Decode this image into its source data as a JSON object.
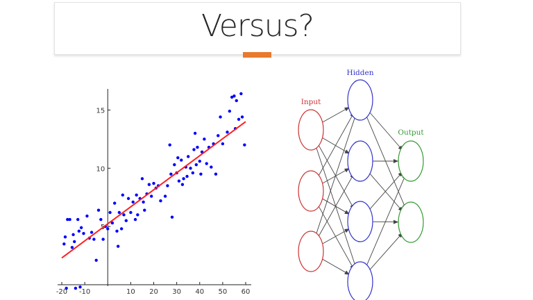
{
  "slide": {
    "title": "Versus?",
    "accent_color": "#e8792d"
  },
  "chart_data": {
    "type": "scatter",
    "title": "",
    "xlabel": "",
    "ylabel": "",
    "xlim": [
      -21,
      62
    ],
    "ylim": [
      -0.5,
      17
    ],
    "x_ticks": [
      -20,
      -10,
      10,
      20,
      30,
      40,
      50,
      60
    ],
    "y_ticks": [
      5,
      10,
      15
    ],
    "grid": false,
    "point_color": "#0000ff",
    "line_color": "#ff2020",
    "fit_line": {
      "x": [
        -20,
        60
      ],
      "y": [
        2.3,
        14
      ]
    },
    "points": [
      [
        -19,
        3.5
      ],
      [
        -18.5,
        4.1
      ],
      [
        -17.5,
        5.6
      ],
      [
        -16.5,
        5.6
      ],
      [
        -15.5,
        3.2
      ],
      [
        -15,
        4.3
      ],
      [
        -14.5,
        3.7
      ],
      [
        -13,
        5.6
      ],
      [
        -12.5,
        4.6
      ],
      [
        -11.5,
        4.9
      ],
      [
        -10.5,
        4.4
      ],
      [
        -9,
        5.9
      ],
      [
        -8,
        4.0
      ],
      [
        -7,
        4.5
      ],
      [
        -6,
        3.9
      ],
      [
        -5,
        2.1
      ],
      [
        -4,
        6.4
      ],
      [
        -3,
        5.6
      ],
      [
        -2,
        3.9
      ],
      [
        -1,
        5.0
      ],
      [
        0,
        4.8
      ],
      [
        1,
        6.2
      ],
      [
        2,
        5.3
      ],
      [
        3,
        7.0
      ],
      [
        4,
        4.6
      ],
      [
        4.5,
        3.3
      ],
      [
        5,
        6.2
      ],
      [
        6,
        4.8
      ],
      [
        6.5,
        7.7
      ],
      [
        7,
        6.0
      ],
      [
        8,
        5.5
      ],
      [
        9,
        7.4
      ],
      [
        10,
        6.2
      ],
      [
        11,
        7.1
      ],
      [
        12,
        5.6
      ],
      [
        12.5,
        7.7
      ],
      [
        13,
        6.0
      ],
      [
        14,
        7.4
      ],
      [
        15,
        9.1
      ],
      [
        15.5,
        7.1
      ],
      [
        16,
        6.4
      ],
      [
        17,
        7.8
      ],
      [
        18,
        8.6
      ],
      [
        19,
        7.6
      ],
      [
        20,
        8.7
      ],
      [
        21,
        8.3
      ],
      [
        22,
        8.5
      ],
      [
        23,
        7.2
      ],
      [
        25,
        7.6
      ],
      [
        26,
        8.5
      ],
      [
        27,
        12.0
      ],
      [
        27.5,
        9.5
      ],
      [
        28,
        5.8
      ],
      [
        29,
        10.3
      ],
      [
        30,
        9.6
      ],
      [
        30.5,
        10.9
      ],
      [
        31,
        8.9
      ],
      [
        32,
        10.7
      ],
      [
        32.5,
        8.6
      ],
      [
        33,
        9.1
      ],
      [
        34,
        10.1
      ],
      [
        34.5,
        9.3
      ],
      [
        35,
        11.0
      ],
      [
        36,
        10.0
      ],
      [
        37,
        9.6
      ],
      [
        37.5,
        11.6
      ],
      [
        38,
        13.0
      ],
      [
        38.5,
        10.3
      ],
      [
        39,
        11.8
      ],
      [
        40,
        10.6
      ],
      [
        40.5,
        9.5
      ],
      [
        41,
        11.4
      ],
      [
        42,
        12.5
      ],
      [
        43,
        10.4
      ],
      [
        44,
        11.8
      ],
      [
        45,
        10.1
      ],
      [
        46,
        12.1
      ],
      [
        47,
        9.5
      ],
      [
        48,
        12.8
      ],
      [
        49,
        14.4
      ],
      [
        50,
        12.1
      ],
      [
        52,
        13.1
      ],
      [
        53,
        14.9
      ],
      [
        54,
        16.1
      ],
      [
        55,
        16.2
      ],
      [
        55.5,
        13.4
      ],
      [
        56,
        15.8
      ],
      [
        57,
        14.2
      ],
      [
        58,
        16.4
      ],
      [
        58.5,
        14.4
      ],
      [
        59.5,
        12.0
      ],
      [
        -18,
        -0.3
      ],
      [
        -14,
        -0.3
      ],
      [
        -12,
        -0.2
      ]
    ]
  },
  "network": {
    "labels": {
      "input": "Input",
      "hidden": "Hidden",
      "output": "Output"
    },
    "colors": {
      "input": "#cc3333",
      "hidden": "#3333cc",
      "output": "#339933",
      "edge": "#444444"
    },
    "layers": {
      "input": 3,
      "hidden": 4,
      "output": 2
    }
  }
}
